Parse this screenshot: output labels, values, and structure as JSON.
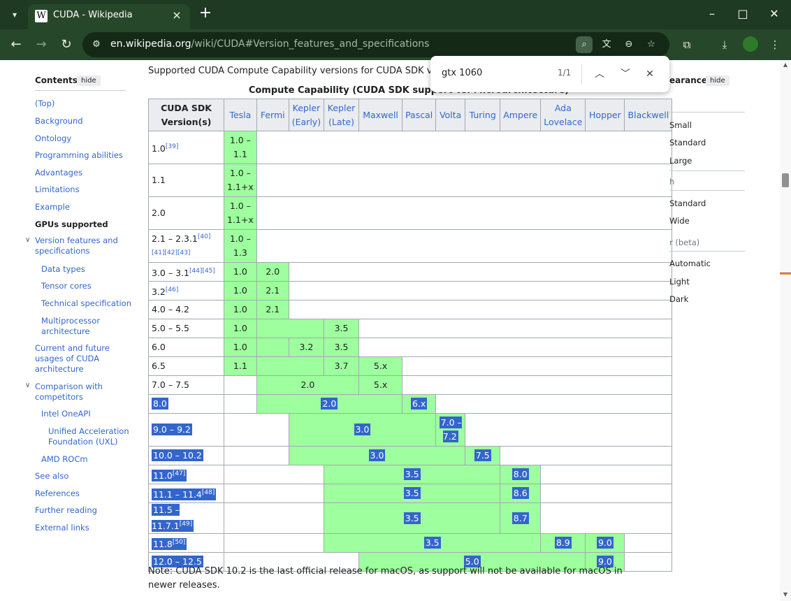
{
  "browser": {
    "tab": {
      "title": "CUDA - Wikipedia",
      "favicon": "W"
    },
    "url": {
      "host": "en.wikipedia.org",
      "path": "/wiki/CUDA#Version_features_and_specifications"
    },
    "find": {
      "query": "gtx 1060",
      "count": "1/1"
    },
    "colors": {
      "frame": "#1f3a22",
      "toolbar": "#27472a",
      "highlight": "#3366cc",
      "cell_green": "#9eff9e"
    }
  },
  "toc": {
    "title": "Contents",
    "hide_label": "hide",
    "items": [
      {
        "label": "(Top)"
      },
      {
        "label": "Background"
      },
      {
        "label": "Ontology"
      },
      {
        "label": "Programming abilities"
      },
      {
        "label": "Advantages"
      },
      {
        "label": "Limitations"
      },
      {
        "label": "Example"
      },
      {
        "label": "GPUs supported"
      },
      {
        "label": "Version features and specifications"
      },
      {
        "label": "Data types"
      },
      {
        "label": "Tensor cores"
      },
      {
        "label": "Technical specification"
      },
      {
        "label": "Multiprocessor architecture"
      },
      {
        "label": "Current and future usages of CUDA architecture"
      },
      {
        "label": "Comparison with competitors"
      },
      {
        "label": "Intel OneAPI"
      },
      {
        "label": "Unified Acceleration Foundation (UXL)"
      },
      {
        "label": "AMD ROCm"
      },
      {
        "label": "See also"
      },
      {
        "label": "References"
      },
      {
        "label": "Further reading"
      },
      {
        "label": "External links"
      }
    ]
  },
  "article": {
    "caption": "Supported CUDA Compute Capability versions for CUDA SDK version",
    "table_title": "Compute Capability (CUDA SDK support vs. Microarchitecture)",
    "note": "Note: CUDA SDK 10.2 is the last official release for macOS, as support will not be available for macOS in newer releases."
  },
  "table": {
    "corner": "CUDA SDK Version(s)",
    "headers": [
      "Tesla",
      "Fermi",
      "Kepler (Early)",
      "Kepler (Late)",
      "Maxwell",
      "Pascal",
      "Volta",
      "Turing",
      "Ampere",
      "Ada Lovelace",
      "Hopper",
      "Blackwell"
    ],
    "rows": [
      {
        "version": "1.0",
        "refs": "[39]",
        "cells": [
          "1.0 – 1.1",
          "",
          "",
          "",
          "",
          "",
          "",
          "",
          "",
          "",
          "",
          ""
        ]
      },
      {
        "version": "1.1",
        "refs": "",
        "cells": [
          "1.0 – 1.1+x",
          "",
          "",
          "",
          "",
          "",
          "",
          "",
          "",
          "",
          "",
          ""
        ]
      },
      {
        "version": "2.0",
        "refs": "",
        "cells": [
          "1.0 – 1.1+x",
          "",
          "",
          "",
          "",
          "",
          "",
          "",
          "",
          "",
          "",
          ""
        ]
      },
      {
        "version": "2.1 – 2.3.1",
        "refs": "[40][41][42][43]",
        "cells": [
          "1.0 – 1.3",
          "",
          "",
          "",
          "",
          "",
          "",
          "",
          "",
          "",
          "",
          ""
        ]
      },
      {
        "version": "3.0 – 3.1",
        "refs": "[44][45]",
        "cells": [
          "1.0",
          "2.0",
          "",
          "",
          "",
          "",
          "",
          "",
          "",
          "",
          "",
          ""
        ]
      },
      {
        "version": "3.2",
        "refs": "[46]",
        "cells": [
          "1.0",
          "2.1",
          "",
          "",
          "",
          "",
          "",
          "",
          "",
          "",
          "",
          ""
        ]
      },
      {
        "version": "4.0 – 4.2",
        "refs": "",
        "cells": [
          "1.0",
          "2.1",
          "",
          "",
          "",
          "",
          "",
          "",
          "",
          "",
          "",
          ""
        ]
      },
      {
        "version": "5.0 – 5.5",
        "refs": "",
        "cells": [
          "1.0",
          "",
          "",
          "3.5",
          "",
          "",
          "",
          "",
          "",
          "",
          "",
          ""
        ]
      },
      {
        "version": "6.0",
        "refs": "",
        "cells": [
          "1.0",
          "",
          "3.2",
          "3.5",
          "",
          "",
          "",
          "",
          "",
          "",
          "",
          ""
        ]
      },
      {
        "version": "6.5",
        "refs": "",
        "cells": [
          "1.1",
          "",
          "",
          "3.7",
          "5.x",
          "",
          "",
          "",
          "",
          "",
          "",
          ""
        ]
      },
      {
        "version": "7.0 – 7.5",
        "refs": "",
        "cells": [
          "",
          "2.0",
          "",
          "",
          "5.x",
          "",
          "",
          "",
          "",
          "",
          "",
          ""
        ]
      },
      {
        "version": "8.0",
        "refs": "",
        "cells": [
          "",
          "2.0",
          "",
          "",
          "",
          "6.x",
          "",
          "",
          "",
          "",
          "",
          ""
        ]
      },
      {
        "version": "9.0 – 9.2",
        "refs": "",
        "cells": [
          "",
          "",
          "3.0",
          "",
          "",
          "",
          "7.0 – 7.2",
          "",
          "",
          "",
          "",
          ""
        ]
      },
      {
        "version": "10.0 – 10.2",
        "refs": "",
        "cells": [
          "",
          "",
          "3.0",
          "",
          "",
          "",
          "",
          "7.5",
          "",
          "",
          "",
          ""
        ]
      },
      {
        "version": "11.0",
        "refs": "[47]",
        "cells": [
          "",
          "",
          "",
          "3.5",
          "",
          "",
          "",
          "",
          "8.0",
          "",
          "",
          ""
        ]
      },
      {
        "version": "11.1 – 11.4",
        "refs": "[48]",
        "cells": [
          "",
          "",
          "",
          "3.5",
          "",
          "",
          "",
          "",
          "8.6",
          "",
          "",
          ""
        ]
      },
      {
        "version": "11.5 – 11.7.1",
        "refs": "[49]",
        "cells": [
          "",
          "",
          "",
          "3.5",
          "",
          "",
          "",
          "",
          "8.7",
          "",
          "",
          ""
        ]
      },
      {
        "version": "11.8",
        "refs": "[50]",
        "cells": [
          "",
          "",
          "",
          "3.5",
          "",
          "",
          "",
          "",
          "",
          "8.9",
          "9.0",
          ""
        ]
      },
      {
        "version": "12.0 – 12.5",
        "refs": "",
        "cells": [
          "",
          "",
          "",
          "",
          "5.0",
          "",
          "",
          "",
          "",
          "",
          "9.0",
          ""
        ]
      }
    ]
  },
  "appearance": {
    "title": "earance",
    "hide_label": "hide",
    "text_options": [
      "Small",
      "Standard",
      "Large"
    ],
    "width_label": "h",
    "width_options": [
      "Standard",
      "Wide"
    ],
    "color_label": "r (beta)",
    "color_options": [
      "Automatic",
      "Light",
      "Dark"
    ]
  }
}
